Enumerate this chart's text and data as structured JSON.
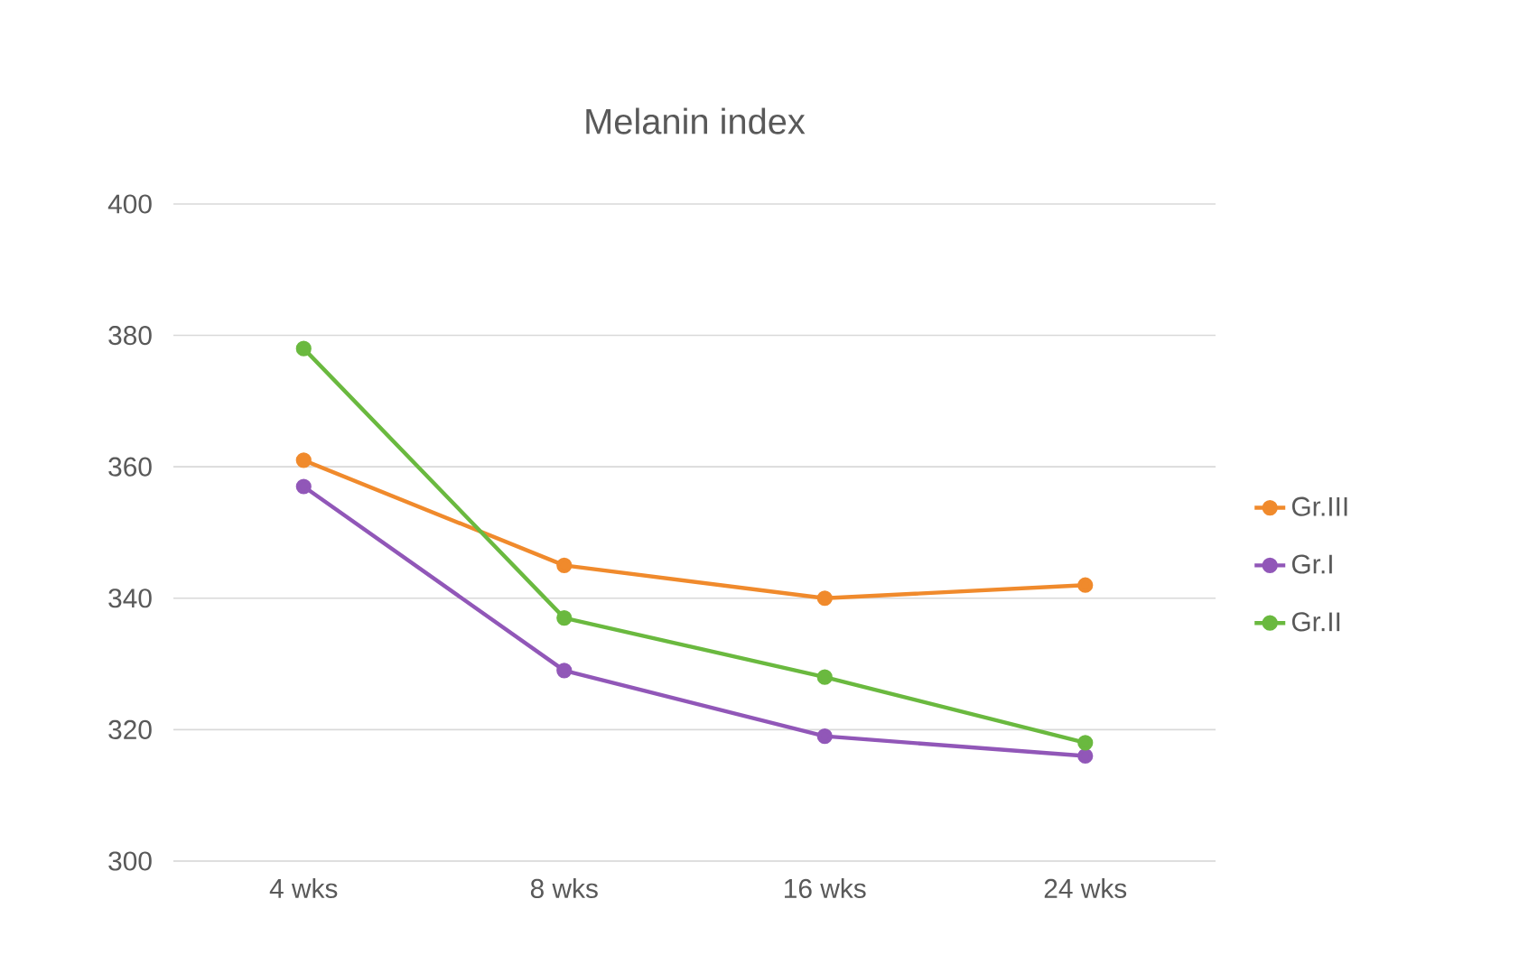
{
  "chart_data": {
    "type": "line",
    "title": "Melanin index",
    "categories": [
      "4 wks",
      "8 wks",
      "16 wks",
      "24 wks"
    ],
    "series": [
      {
        "name": "Gr.III",
        "color": "#f08a2c",
        "values": [
          361,
          345,
          340,
          342
        ]
      },
      {
        "name": "Gr.I",
        "color": "#9157b8",
        "values": [
          357,
          329,
          319,
          316
        ]
      },
      {
        "name": "Gr.II",
        "color": "#6ab93f",
        "values": [
          378,
          337,
          328,
          318
        ]
      }
    ],
    "ylim": [
      300,
      400
    ],
    "yticks": [
      300,
      320,
      340,
      360,
      380,
      400
    ],
    "grid": "y",
    "legend": "right",
    "marker": "circle",
    "line_style": "solid"
  }
}
